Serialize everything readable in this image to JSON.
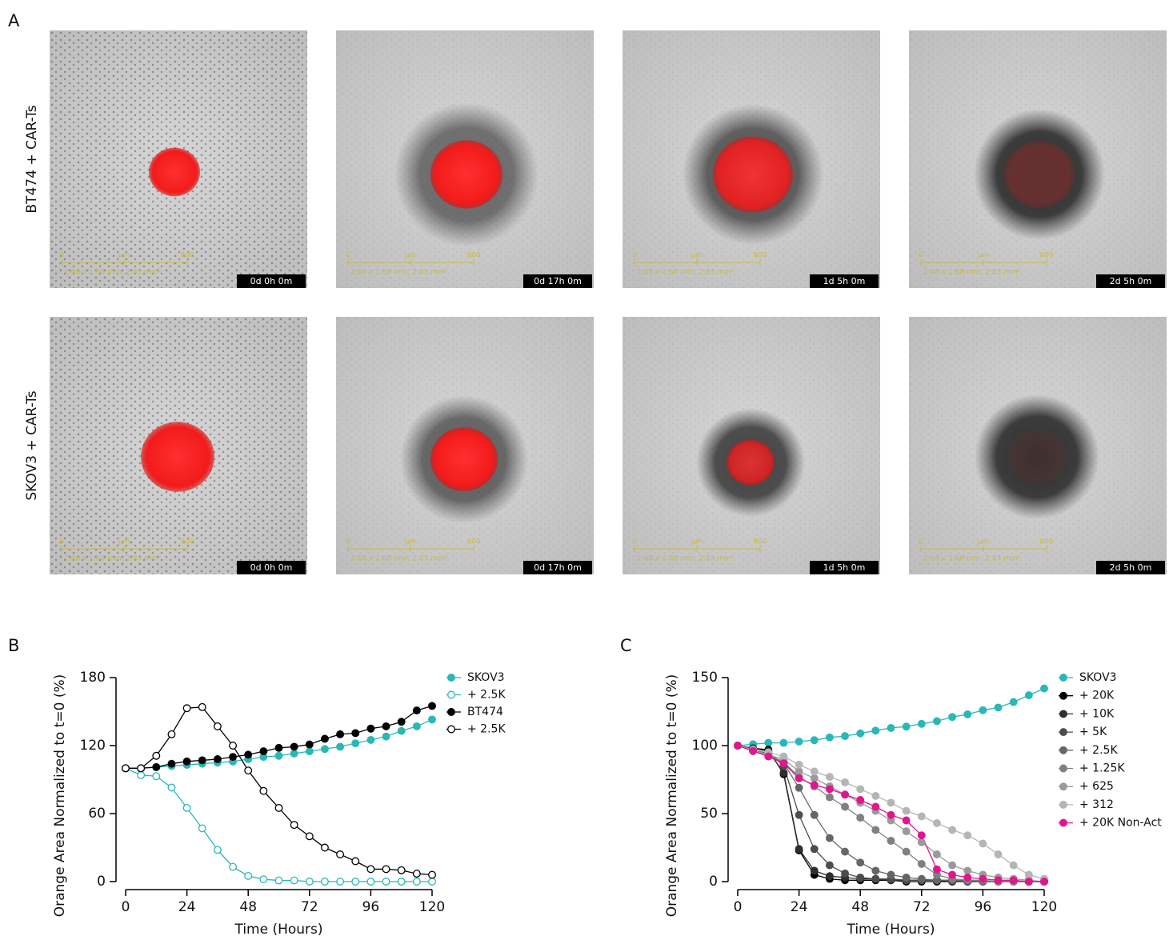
{
  "panel_labels": [
    "A",
    "B",
    "C"
  ],
  "panel_a": {
    "rows": [
      "BT474 + CAR-Ts",
      "SKOV3 + CAR-Ts"
    ],
    "timestamps": [
      "0d 0h 0m",
      "0d 17h 0m",
      "1d 5h 0m",
      "2d 5h 0m"
    ],
    "scale_bar": {
      "start": "0",
      "unit": "µm",
      "end": "800",
      "area": "1.68 x 1.68 mm, 2.83 mm²"
    }
  },
  "chart_data": [
    {
      "type": "line",
      "xlabel": "Time (Hours)",
      "ylabel": "Orange Area Normalized to t=0 (%)",
      "xlim": [
        0,
        120
      ],
      "xticks": [
        0,
        24,
        48,
        72,
        96,
        120
      ],
      "ylim": [
        0,
        180
      ],
      "yticks": [
        0,
        60,
        120,
        180
      ],
      "legend": "upper right",
      "x": [
        0,
        6,
        12,
        18,
        24,
        30,
        36,
        42,
        48,
        54,
        60,
        66,
        72,
        78,
        84,
        90,
        96,
        102,
        108,
        114,
        120
      ],
      "series": [
        {
          "name": "SKOV3",
          "color": "#2ab7b7",
          "marker": "filled",
          "values": [
            100,
            100,
            101,
            102,
            103,
            104,
            105,
            106,
            108,
            110,
            111,
            113,
            115,
            117,
            119,
            122,
            125,
            128,
            133,
            137,
            143
          ]
        },
        {
          "name": "+ 2.5K",
          "color": "#2ab7b7",
          "marker": "open",
          "values": [
            100,
            94,
            93,
            83,
            65,
            47,
            28,
            13,
            5,
            2,
            1,
            1,
            0,
            0,
            0,
            0,
            0,
            0,
            0,
            0,
            0
          ]
        },
        {
          "name": "BT474",
          "color": "#000000",
          "marker": "filled",
          "values": [
            100,
            100,
            101,
            104,
            106,
            107,
            108,
            110,
            112,
            115,
            118,
            119,
            121,
            126,
            130,
            131,
            135,
            137,
            141,
            151,
            155
          ]
        },
        {
          "name": "+ 2.5K",
          "color": "#000000",
          "marker": "open",
          "values": [
            100,
            100,
            111,
            130,
            153,
            154,
            137,
            120,
            98,
            80,
            65,
            50,
            40,
            30,
            24,
            18,
            11,
            11,
            10,
            7,
            6
          ]
        }
      ]
    },
    {
      "type": "line",
      "xlabel": "Time (Hours)",
      "ylabel": "Orange Area Normalized to t=0 (%)",
      "xlim": [
        0,
        120
      ],
      "xticks": [
        0,
        24,
        48,
        72,
        96,
        120
      ],
      "ylim": [
        0,
        150
      ],
      "yticks": [
        0,
        50,
        100,
        150
      ],
      "legend": "upper right",
      "x": [
        0,
        6,
        12,
        18,
        24,
        30,
        36,
        42,
        48,
        54,
        60,
        66,
        72,
        78,
        84,
        90,
        96,
        102,
        108,
        114,
        120
      ],
      "series": [
        {
          "name": "SKOV3",
          "color": "#2ab7b7",
          "marker": "filled",
          "values": [
            100,
            101,
            102,
            102,
            103,
            104,
            106,
            107,
            109,
            111,
            113,
            114,
            116,
            118,
            121,
            123,
            126,
            128,
            132,
            137,
            142
          ]
        },
        {
          "name": "+ 20K",
          "color": "#000000",
          "marker": "filled",
          "values": [
            100,
            98,
            97,
            79,
            23,
            5,
            2,
            1,
            1,
            1,
            1,
            0,
            0,
            0,
            0,
            0,
            0,
            0,
            0,
            0,
            0
          ]
        },
        {
          "name": "+ 10K",
          "color": "#2e2e2e",
          "marker": "filled",
          "values": [
            100,
            98,
            96,
            80,
            24,
            8,
            4,
            3,
            2,
            2,
            1,
            1,
            1,
            1,
            0,
            0,
            0,
            0,
            0,
            0,
            0
          ]
        },
        {
          "name": "+ 5K",
          "color": "#4d4d4d",
          "marker": "filled",
          "values": [
            100,
            97,
            95,
            85,
            49,
            24,
            12,
            6,
            3,
            2,
            2,
            1,
            1,
            1,
            1,
            0,
            0,
            0,
            0,
            0,
            0
          ]
        },
        {
          "name": "+ 2.5K",
          "color": "#666666",
          "marker": "filled",
          "values": [
            100,
            97,
            94,
            87,
            69,
            49,
            32,
            22,
            14,
            8,
            5,
            3,
            2,
            1,
            1,
            1,
            0,
            0,
            0,
            0,
            0
          ]
        },
        {
          "name": "+ 1.25K",
          "color": "#808080",
          "marker": "filled",
          "values": [
            100,
            96,
            93,
            88,
            77,
            70,
            62,
            55,
            47,
            38,
            30,
            22,
            13,
            5,
            2,
            1,
            1,
            0,
            0,
            0,
            0
          ]
        },
        {
          "name": "+ 625",
          "color": "#9a9a9a",
          "marker": "filled",
          "values": [
            100,
            96,
            93,
            90,
            81,
            76,
            70,
            64,
            58,
            52,
            45,
            37,
            29,
            20,
            12,
            8,
            5,
            3,
            2,
            1,
            0
          ]
        },
        {
          "name": "+ 312",
          "color": "#b5b5b5",
          "marker": "filled",
          "values": [
            100,
            97,
            95,
            92,
            86,
            81,
            77,
            73,
            68,
            63,
            58,
            52,
            48,
            43,
            38,
            34,
            28,
            20,
            12,
            5,
            2
          ]
        },
        {
          "name": "+ 20K Non-Act",
          "color": "#e0168c",
          "marker": "filled",
          "values": [
            100,
            96,
            92,
            87,
            76,
            71,
            68,
            64,
            60,
            55,
            49,
            45,
            34,
            9,
            5,
            3,
            2,
            1,
            1,
            0,
            0
          ]
        }
      ]
    }
  ]
}
